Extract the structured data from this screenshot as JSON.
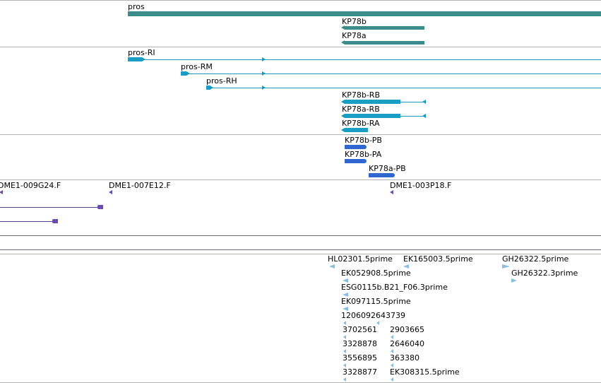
{
  "gene_track": {
    "genes": [
      {
        "name": "pros"
      },
      {
        "name": "KP78b"
      },
      {
        "name": "KP78a"
      }
    ]
  },
  "transcript_track": {
    "transcripts": [
      {
        "name": "pros-RI"
      },
      {
        "name": "pros-RM"
      },
      {
        "name": "pros-RH"
      },
      {
        "name": "KP78b-RB"
      },
      {
        "name": "KP78a-RB"
      },
      {
        "name": "KP78b-RA"
      }
    ]
  },
  "protein_track": {
    "proteins": [
      {
        "name": "KP78b-PB"
      },
      {
        "name": "KP78b-PA"
      },
      {
        "name": "KP78a-PB"
      }
    ]
  },
  "clone_track": {
    "clones": [
      {
        "name": "DME1-009G24.F"
      },
      {
        "name": "DME1-007E12.F"
      },
      {
        "name": "DME1-003P18.F"
      }
    ]
  },
  "est_track": {
    "ests": [
      {
        "name": "HL02301.5prime"
      },
      {
        "name": "EK165003.5prime"
      },
      {
        "name": "GH26322.5prime"
      },
      {
        "name": "EK052908.5prime"
      },
      {
        "name": "GH26322.3prime"
      },
      {
        "name": "ESG0115b.B21_F06.3prime"
      },
      {
        "name": "EK097115.5prime"
      },
      {
        "name": "1206092643739"
      },
      {
        "name": "3702561"
      },
      {
        "name": "2903665"
      },
      {
        "name": "3328878"
      },
      {
        "name": "2646040"
      },
      {
        "name": "3556895"
      },
      {
        "name": "363380"
      },
      {
        "name": "3328877"
      },
      {
        "name": "EK308315.5prime"
      }
    ]
  },
  "colors": {
    "gene": "#3b8d8b",
    "transcript": "#1a9ec6",
    "protein": "#2f66d0",
    "clone": "#6a4bae",
    "est": "#8bbde0",
    "divider": "#b4b4b4"
  }
}
